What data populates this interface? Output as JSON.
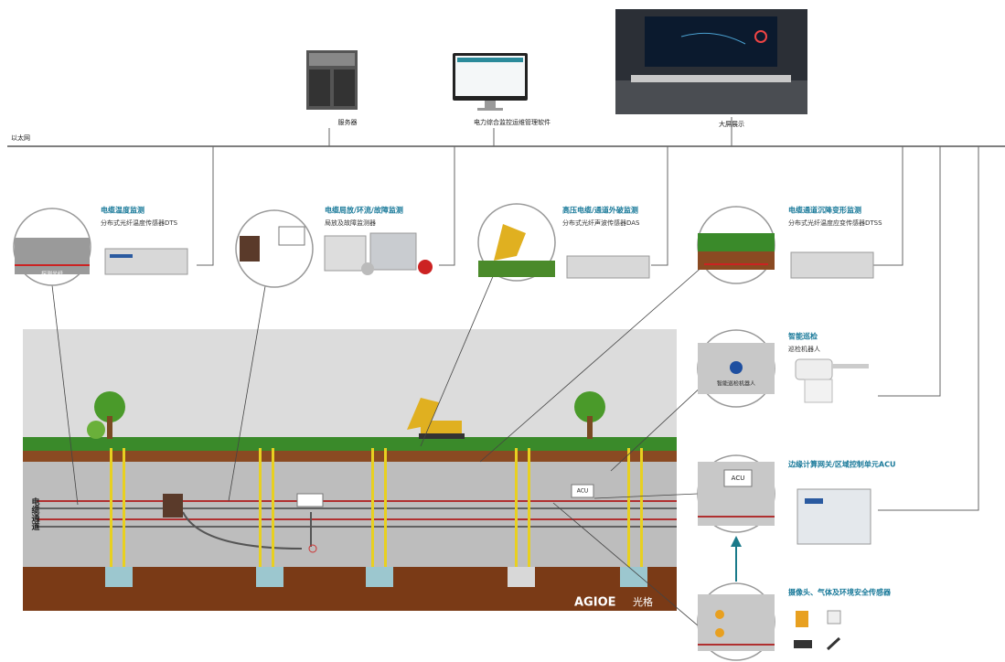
{
  "network_label": "以太网",
  "top_devices": [
    {
      "label": "服务器"
    },
    {
      "label": "电力综合监控运维管理软件"
    },
    {
      "label": "大屏展示"
    }
  ],
  "monitors": [
    {
      "title": "电缆温度监测",
      "subtitle": "分布式光纤温度传感器DTS",
      "inset": "探测光纤"
    },
    {
      "title": "电缆局放/环流/故障监测",
      "subtitle": "局放及故障监测器"
    },
    {
      "title": "高压电缆/通道外破监测",
      "subtitle": "分布式光纤声波传感器DAS"
    },
    {
      "title": "电缆通道沉降变形监测",
      "subtitle": "分布式光纤温度应变传感器DTSS"
    },
    {
      "title": "智能巡检",
      "subtitle": "巡检机器人",
      "inset": "智能巡检机器人"
    },
    {
      "title": "边缘计算网关/区域控制单元ACU",
      "inset": "ACU"
    },
    {
      "title": "摄像头、气体及环境安全传感器"
    }
  ],
  "tunnel": {
    "label": "电缆通道",
    "acu": "ACU"
  },
  "logo": {
    "brand": "AGIOE",
    "name": "光格"
  }
}
